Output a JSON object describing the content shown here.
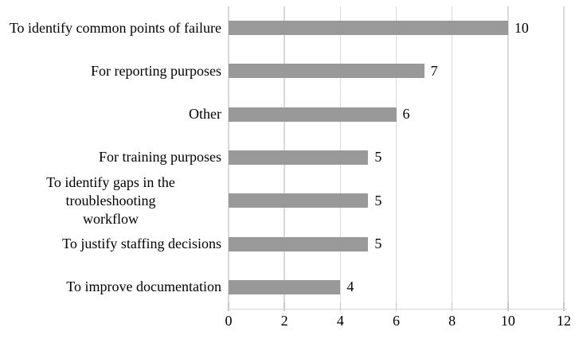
{
  "figure": {
    "background": "#ffffff"
  },
  "chart_data": {
    "type": "bar",
    "orientation": "horizontal",
    "title": "",
    "xlabel": "",
    "ylabel": "",
    "categories": [
      "To identify common points of failure",
      "For reporting purposes",
      "Other",
      "For training purposes",
      "To identify gaps in the troubleshooting workflow",
      "To justify staffing decisions",
      "To improve documentation"
    ],
    "category_display_lines": [
      [
        "To identify common points of failure"
      ],
      [
        "For reporting purposes"
      ],
      [
        "Other"
      ],
      [
        "For training purposes"
      ],
      [
        "To identify gaps in the troubleshooting",
        "workflow"
      ],
      [
        "To justify staffing decisions"
      ],
      [
        "To improve documentation"
      ]
    ],
    "values": [
      10,
      7,
      6,
      5,
      5,
      5,
      4
    ],
    "data_labels": [
      "10",
      "7",
      "6",
      "5",
      "5",
      "5",
      "4"
    ],
    "x_ticks": [
      "0",
      "2",
      "4",
      "6",
      "8",
      "10",
      "12"
    ],
    "x_tick_values": [
      0,
      2,
      4,
      6,
      8,
      10,
      12
    ],
    "xlim": [
      0,
      12
    ],
    "grid": "vertical-gridlines-on",
    "legend": "none",
    "bar_color": "#999999",
    "gridline_color": "#d9d9d9",
    "axis_line_color": "#d6d6d6",
    "tick_color": "#c6c6c6",
    "text_color": "#000000"
  }
}
